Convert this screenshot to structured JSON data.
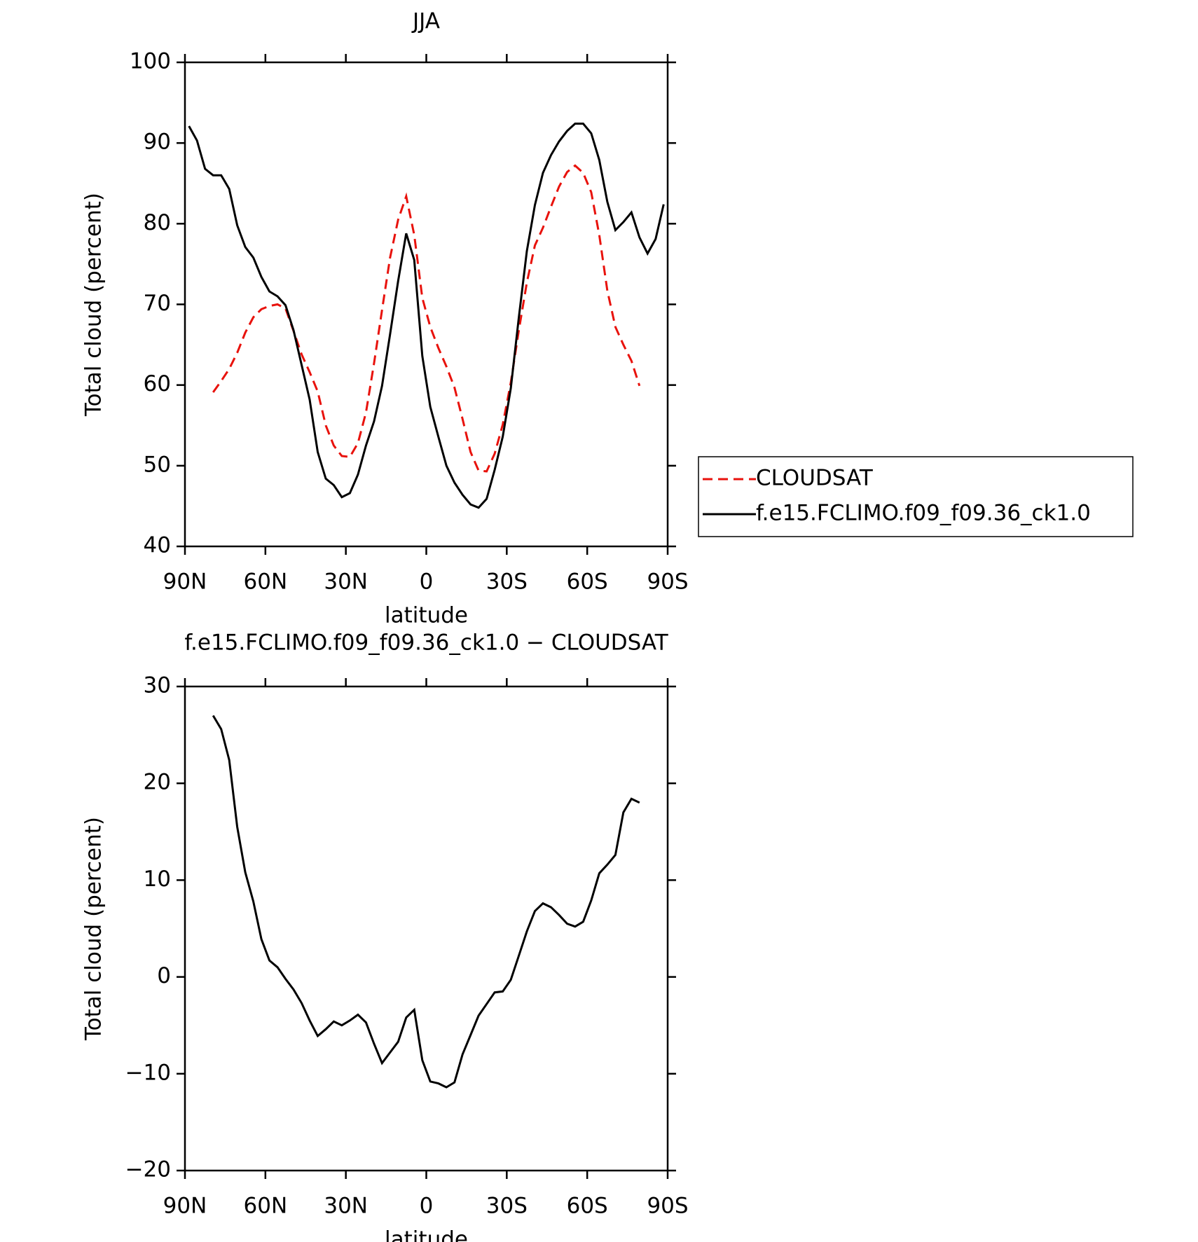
{
  "chart_data": [
    {
      "type": "line",
      "title": "JJA",
      "x_label": "latitude",
      "y_label": "Total cloud (percent)",
      "x": [
        88.5,
        85.5,
        82.5,
        79.5,
        76.5,
        73.5,
        70.5,
        67.5,
        64.5,
        61.5,
        58.5,
        55.5,
        52.5,
        49.5,
        46.5,
        43.5,
        40.5,
        37.5,
        34.5,
        31.5,
        28.5,
        25.5,
        22.5,
        19.5,
        16.5,
        13.5,
        10.5,
        7.5,
        4.5,
        1.5,
        -1.5,
        -4.5,
        -7.5,
        -10.5,
        -13.5,
        -16.5,
        -19.5,
        -22.5,
        -25.5,
        -28.5,
        -31.5,
        -34.5,
        -37.5,
        -40.5,
        -43.5,
        -46.5,
        -49.5,
        -52.5,
        -55.5,
        -58.5,
        -61.5,
        -64.5,
        -67.5,
        -70.5,
        -73.5,
        -76.5,
        -79.5,
        -82.5,
        -85.5,
        -88.5
      ],
      "series": [
        {
          "name": "CLOUDSAT",
          "color": "#e8120c",
          "dash": "dashed",
          "values": [
            null,
            null,
            null,
            59.1,
            60.5,
            62.0,
            64.0,
            66.5,
            68.4,
            69.4,
            69.8,
            70.0,
            69.5,
            66.7,
            63.8,
            61.6,
            59.2,
            55.0,
            52.5,
            51.2,
            51.1,
            52.8,
            56.6,
            62.7,
            69.3,
            75.8,
            80.5,
            83.4,
            78.6,
            70.8,
            67.2,
            64.6,
            62.3,
            59.7,
            55.8,
            51.7,
            49.4,
            49.3,
            51.5,
            55.1,
            60.3,
            66.8,
            72.7,
            77.3,
            79.5,
            82.1,
            84.6,
            86.4,
            87.2,
            86.3,
            83.9,
            78.6,
            71.7,
            67.2,
            65.0,
            63.0,
            59.9,
            null,
            null,
            null
          ]
        },
        {
          "name": "f.e15.FCLIMO.f09_f09.36_ck1.0",
          "color": "#000000",
          "dash": "solid",
          "values": [
            92.1,
            90.3,
            86.8,
            86.0,
            86.0,
            84.3,
            79.8,
            77.1,
            75.8,
            73.4,
            71.6,
            71.0,
            69.9,
            66.8,
            62.5,
            58.2,
            51.7,
            48.4,
            47.6,
            46.1,
            46.6,
            48.9,
            52.5,
            55.5,
            59.9,
            66.3,
            72.9,
            78.8,
            75.5,
            63.6,
            57.3,
            53.6,
            50.0,
            47.9,
            46.4,
            45.2,
            44.8,
            45.9,
            49.5,
            53.6,
            59.6,
            68.4,
            76.6,
            82.3,
            86.3,
            88.5,
            90.2,
            91.5,
            92.4,
            92.4,
            91.2,
            87.9,
            82.7,
            79.2,
            80.2,
            81.4,
            78.3,
            76.3,
            78.1,
            82.4
          ]
        }
      ],
      "xlim": [
        90,
        -90
      ],
      "xticks": [
        {
          "value": 90,
          "label": "90N"
        },
        {
          "value": 60,
          "label": "60N"
        },
        {
          "value": 30,
          "label": "30N"
        },
        0,
        {
          "value": -30,
          "label": "30S"
        },
        {
          "value": -60,
          "label": "60S"
        },
        {
          "value": -90,
          "label": "90S"
        }
      ],
      "ylim": [
        40,
        100
      ],
      "yticks": [
        40,
        50,
        60,
        70,
        80,
        90,
        100
      ],
      "legend": "right"
    },
    {
      "type": "line",
      "title": "f.e15.FCLIMO.f09_f09.36_ck1.0 − CLOUDSAT",
      "x_label": "latitude",
      "y_label": "Total cloud (percent)",
      "x": [
        79.5,
        76.5,
        73.5,
        70.5,
        67.5,
        64.5,
        61.5,
        58.5,
        55.5,
        52.5,
        49.5,
        46.5,
        43.5,
        40.5,
        37.5,
        34.5,
        31.5,
        28.5,
        25.5,
        22.5,
        19.5,
        16.5,
        13.5,
        10.5,
        7.5,
        4.5,
        1.5,
        -1.5,
        -4.5,
        -7.5,
        -10.5,
        -13.5,
        -16.5,
        -19.5,
        -22.5,
        -25.5,
        -28.5,
        -31.5,
        -34.5,
        -37.5,
        -40.5,
        -43.5,
        -46.5,
        -49.5,
        -52.5,
        -55.5,
        -58.5,
        -61.5,
        -64.5,
        -67.5,
        -70.5,
        -73.5,
        -76.5,
        -79.5
      ],
      "series": [
        {
          "color": "#000000",
          "dash": "solid",
          "values": [
            27.0,
            25.6,
            22.4,
            15.5,
            10.8,
            7.8,
            3.9,
            1.7,
            1.0,
            -0.2,
            -1.3,
            -2.7,
            -4.5,
            -6.1,
            -5.4,
            -4.6,
            -5.0,
            -4.5,
            -3.9,
            -4.7,
            -6.9,
            -8.9,
            -7.8,
            -6.7,
            -4.2,
            -3.4,
            -8.6,
            -10.8,
            -11.0,
            -11.4,
            -10.9,
            -8.0,
            -6.0,
            -4.0,
            -2.8,
            -1.6,
            -1.5,
            -0.3,
            2.2,
            4.7,
            6.8,
            7.6,
            7.2,
            6.4,
            5.5,
            5.2,
            5.7,
            7.9,
            10.7,
            11.6,
            12.6,
            17.0,
            18.4,
            18.0
          ]
        }
      ],
      "xlim": [
        90,
        -90
      ],
      "xticks": [
        {
          "value": 90,
          "label": "90N"
        },
        {
          "value": 60,
          "label": "60N"
        },
        {
          "value": 30,
          "label": "30N"
        },
        0,
        {
          "value": -30,
          "label": "30S"
        },
        {
          "value": -60,
          "label": "60S"
        },
        {
          "value": -90,
          "label": "90S"
        }
      ],
      "ylim": [
        -20,
        30
      ],
      "yticks": [
        {
          "value": -20,
          "label": "−20"
        },
        {
          "value": -10,
          "label": "−10"
        },
        0,
        10,
        20,
        30
      ]
    }
  ]
}
